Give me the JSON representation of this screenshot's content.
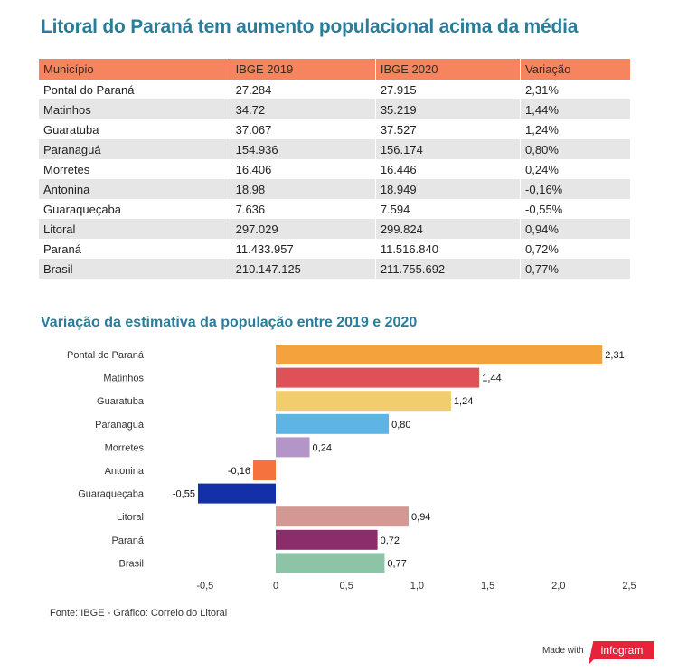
{
  "title": "Litoral do Paraná tem aumento populacional acima da média",
  "table": {
    "headers": [
      "Município",
      "IBGE 2019",
      "IBGE 2020",
      "Variação"
    ],
    "rows": [
      [
        "Pontal do Paraná",
        "27.284",
        "27.915",
        "2,31%"
      ],
      [
        "Matinhos",
        "34.72",
        "35.219",
        "1,44%"
      ],
      [
        "Guaratuba",
        "37.067",
        "37.527",
        "1,24%"
      ],
      [
        "Paranaguá",
        "154.936",
        "156.174",
        "0,80%"
      ],
      [
        "Morretes",
        "16.406",
        "16.446",
        "0,24%"
      ],
      [
        "Antonina",
        "18.98",
        "18.949",
        "-0,16%"
      ],
      [
        "Guaraqueçaba",
        "7.636",
        "7.594",
        "-0,55%"
      ],
      [
        "Litoral",
        "297.029",
        "299.824",
        "0,94%"
      ],
      [
        "Paraná",
        "11.433.957",
        "11.516.840",
        "0,72%"
      ],
      [
        "Brasil",
        "210.147.125",
        "211.755.692",
        "0,77%"
      ]
    ]
  },
  "chart_data": {
    "type": "bar",
    "orientation": "horizontal",
    "title": "Variação da estimativa da população entre 2019 e 2020",
    "categories": [
      "Pontal do Paraná",
      "Matinhos",
      "Guaratuba",
      "Paranaguá",
      "Morretes",
      "Antonina",
      "Guaraqueçaba",
      "Litoral",
      "Paraná",
      "Brasil"
    ],
    "values": [
      2.31,
      1.44,
      1.24,
      0.8,
      0.24,
      -0.16,
      -0.55,
      0.94,
      0.72,
      0.77
    ],
    "value_labels": [
      "2,31",
      "1,44",
      "1,24",
      "0,80",
      "0,24",
      "-0,16",
      "-0,55",
      "0,94",
      "0,72",
      "0,77"
    ],
    "colors": [
      "#f4a23c",
      "#e05157",
      "#f2cd6e",
      "#5db4e5",
      "#b395c8",
      "#f5723e",
      "#1330a8",
      "#d39893",
      "#8a2d6a",
      "#8dc4a7"
    ],
    "xticks": [
      -0.5,
      0,
      0.5,
      1.0,
      1.5,
      2.0,
      2.5
    ],
    "xtick_labels": [
      "-0,5",
      "0",
      "0,5",
      "1,0",
      "1,5",
      "2,0",
      "2,5"
    ],
    "xlim": [
      -0.55,
      2.55
    ],
    "xlabel": "",
    "ylabel": "",
    "grid": false,
    "legend": "none"
  },
  "footer": {
    "source": "Fonte: IBGE - Gráfico: Correio do Litoral",
    "made_with": "Made with",
    "brand": "infogram"
  }
}
